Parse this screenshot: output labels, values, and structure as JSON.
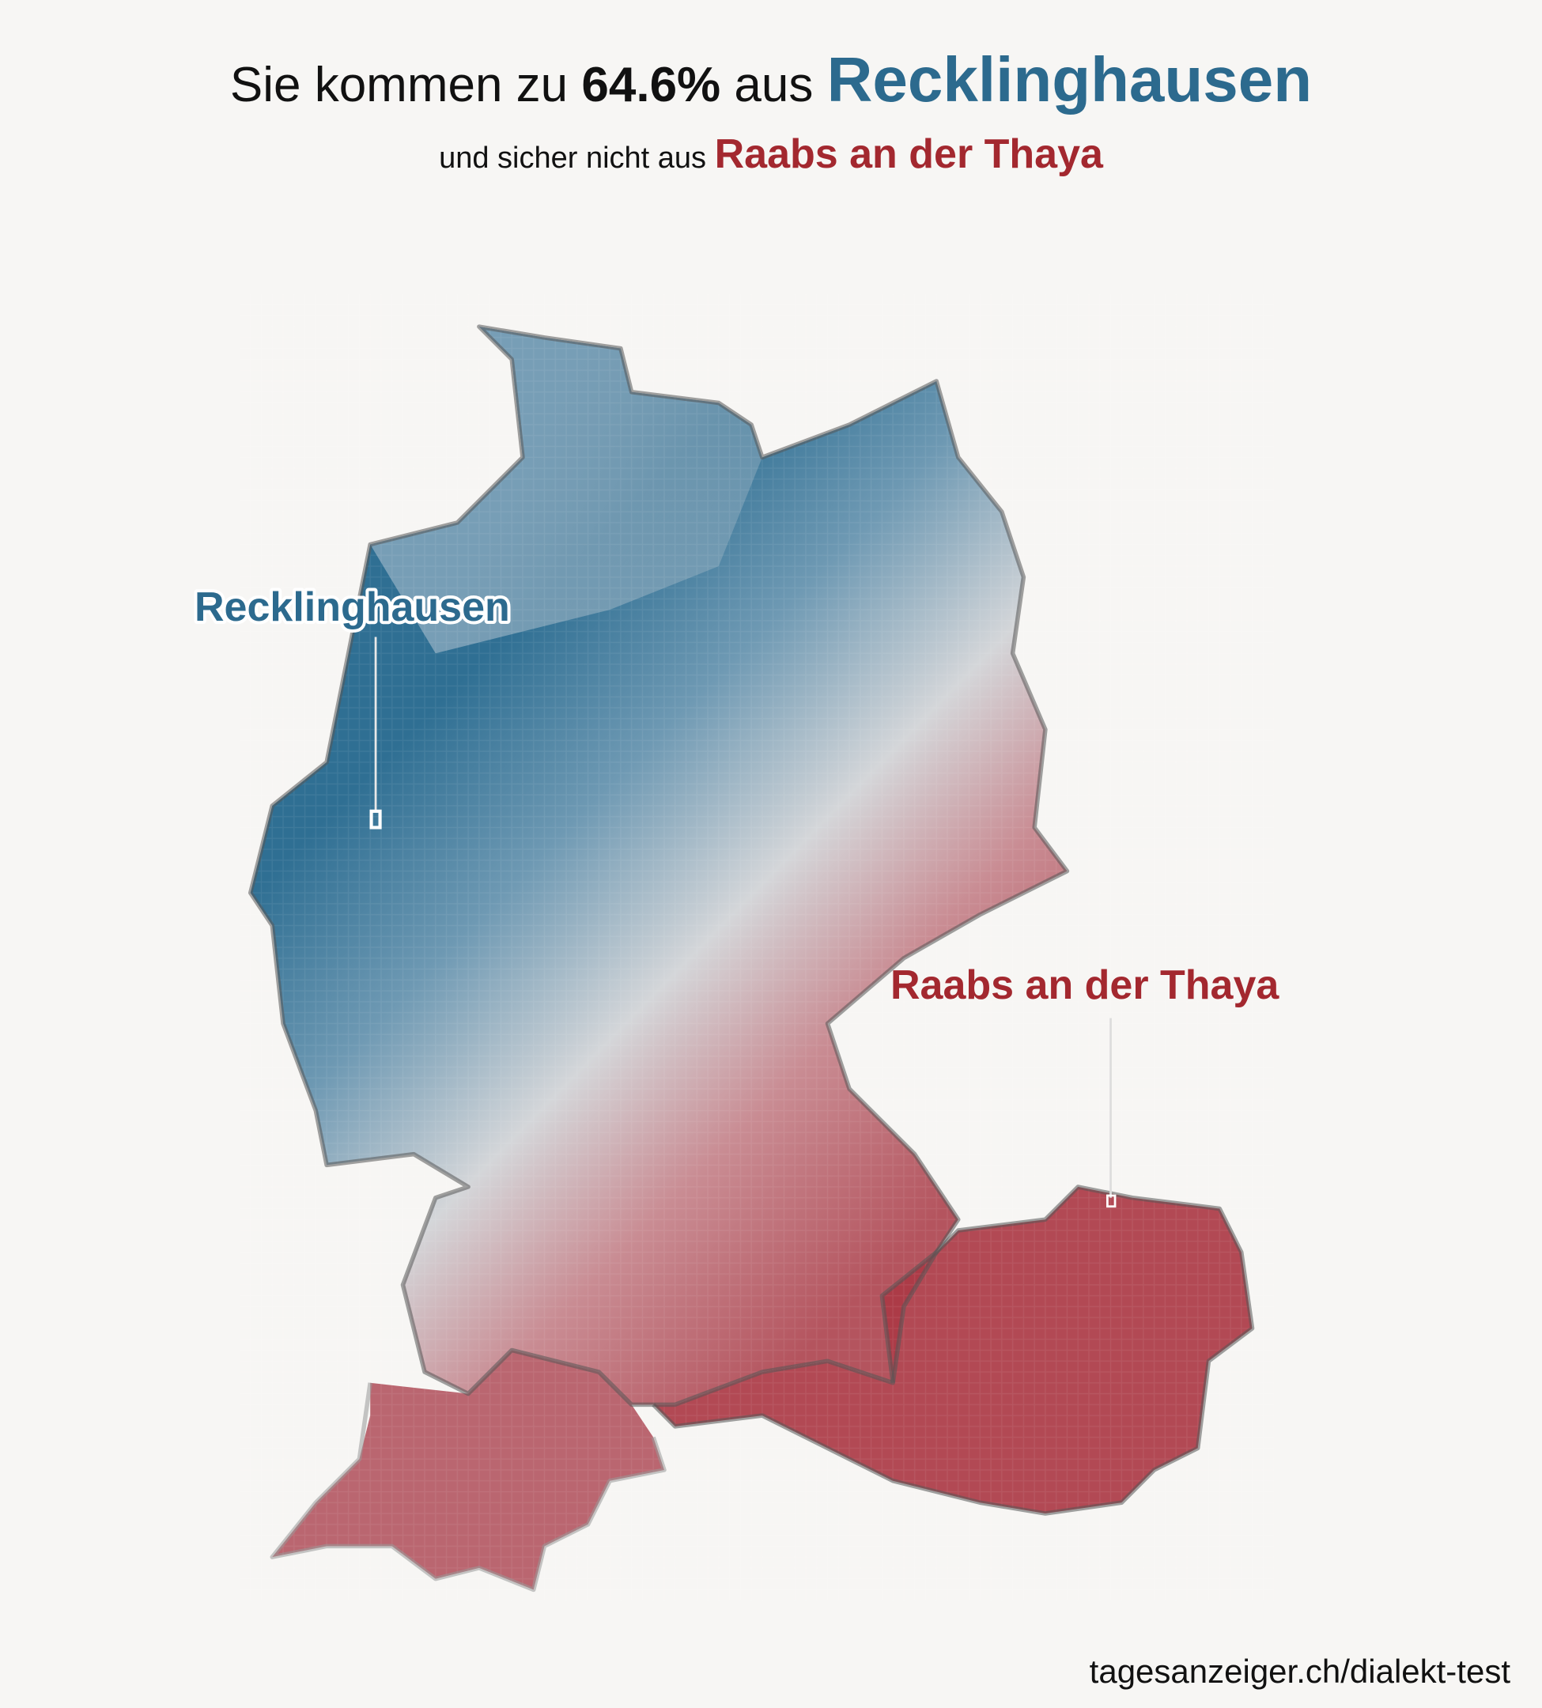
{
  "header": {
    "title_prefix": "Sie kommen zu",
    "title_share": "64.6%",
    "title_mid": "aus",
    "title_place": "Recklinghausen",
    "subtitle_prefix": "und sicher nicht aus",
    "subtitle_place": "Raabs an der Thaya"
  },
  "map": {
    "best_match": {
      "label": "Recklinghausen"
    },
    "worst_match": {
      "label": "Raabs an der Thaya"
    }
  },
  "footer": {
    "source": "tagesanzeiger.ch/dialekt-test"
  }
}
